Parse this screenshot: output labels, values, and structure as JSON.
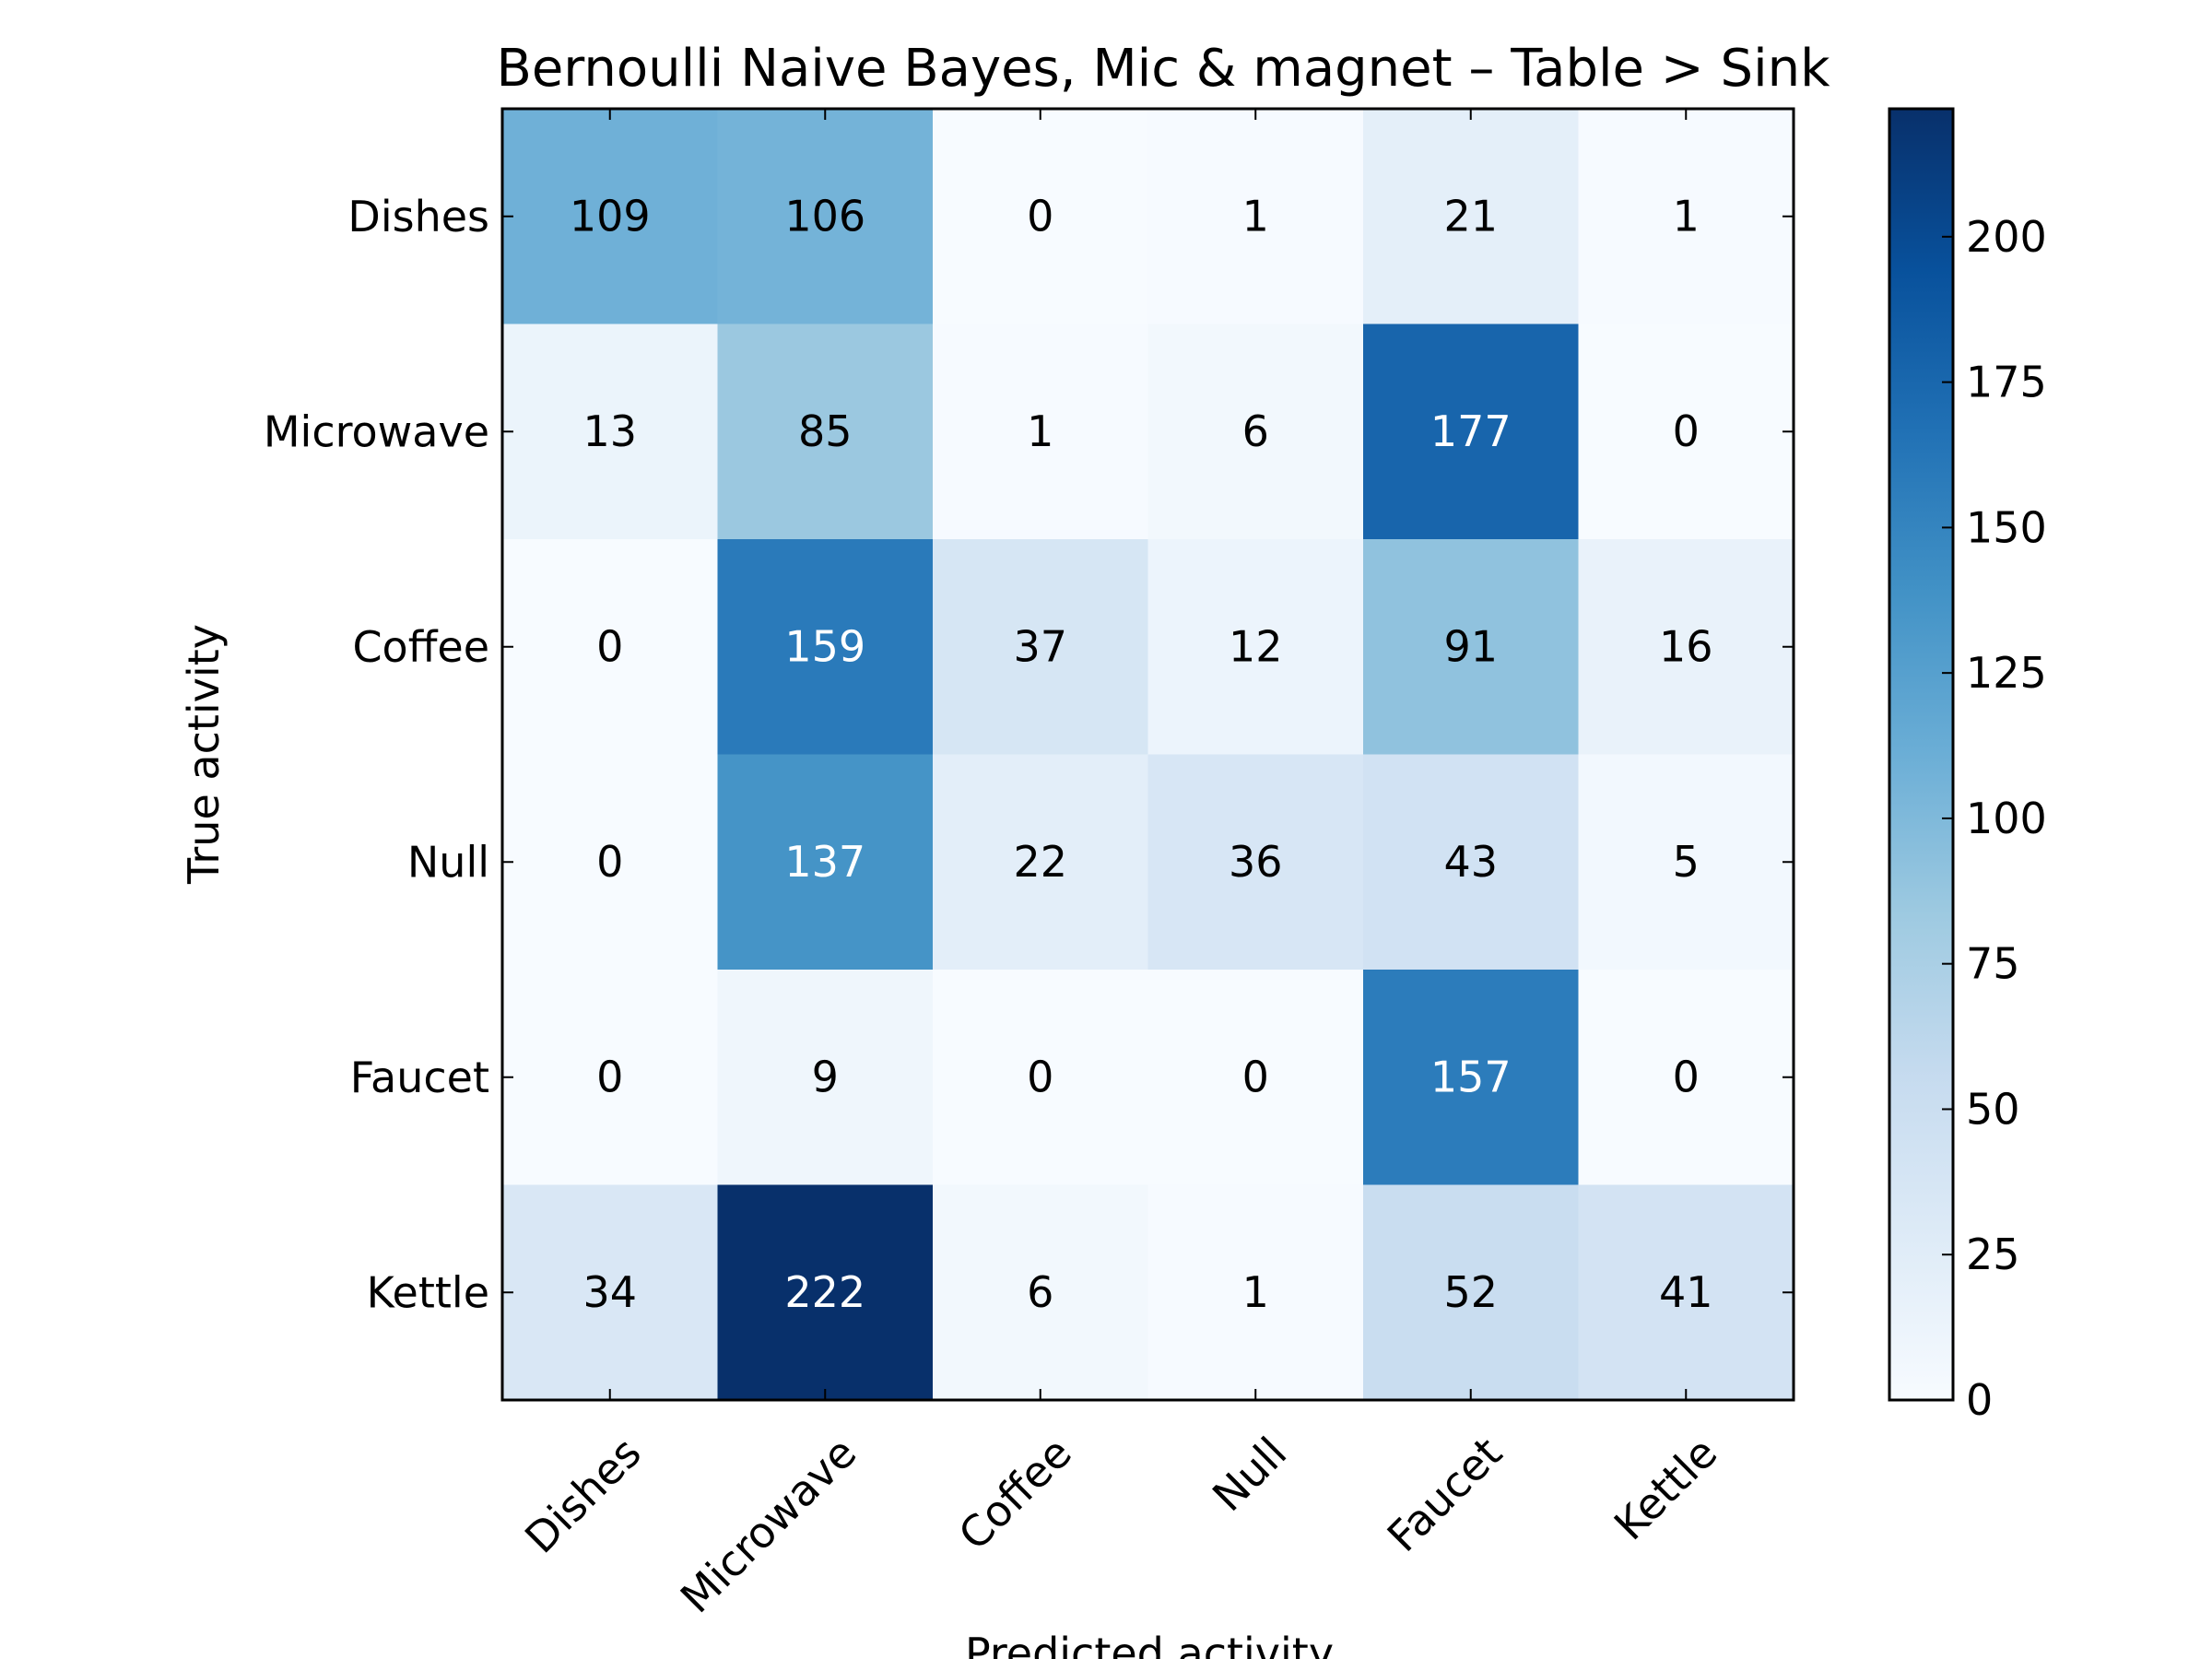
{
  "chart_data": {
    "type": "heatmap",
    "title": "Bernoulli Naive Bayes, Mic & magnet – Table > Sink",
    "xlabel": "Predicted activity",
    "ylabel": "True activity",
    "x_categories": [
      "Dishes",
      "Microwave",
      "Coffee",
      "Null",
      "Faucet",
      "Kettle"
    ],
    "y_categories": [
      "Dishes",
      "Microwave",
      "Coffee",
      "Null",
      "Faucet",
      "Kettle"
    ],
    "values": [
      [
        109,
        106,
        0,
        1,
        21,
        1
      ],
      [
        13,
        85,
        1,
        6,
        177,
        0
      ],
      [
        0,
        159,
        37,
        12,
        91,
        16
      ],
      [
        0,
        137,
        22,
        36,
        43,
        5
      ],
      [
        0,
        9,
        0,
        0,
        157,
        0
      ],
      [
        34,
        222,
        6,
        1,
        52,
        41
      ]
    ],
    "colorbar": {
      "range": [
        0,
        222
      ],
      "ticks": [
        0,
        25,
        50,
        75,
        100,
        125,
        150,
        175,
        200
      ]
    },
    "colormap": [
      "#f7fbff",
      "#deebf7",
      "#c6dbef",
      "#9ecae1",
      "#6baed6",
      "#4292c6",
      "#2171b5",
      "#08519c",
      "#08306b"
    ],
    "text_colors": {
      "dark": "#000000",
      "light": "#ffffff"
    }
  }
}
